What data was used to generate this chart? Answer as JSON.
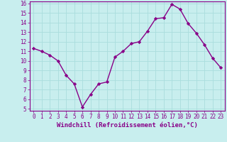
{
  "x": [
    0,
    1,
    2,
    3,
    4,
    5,
    6,
    7,
    8,
    9,
    10,
    11,
    12,
    13,
    14,
    15,
    16,
    17,
    18,
    19,
    20,
    21,
    22,
    23
  ],
  "y": [
    11.3,
    11.0,
    10.6,
    10.0,
    8.5,
    7.6,
    5.2,
    6.5,
    7.6,
    7.8,
    10.4,
    11.0,
    11.8,
    12.0,
    13.1,
    14.4,
    14.5,
    15.9,
    15.4,
    13.9,
    12.9,
    11.7,
    10.3,
    9.3
  ],
  "line_color": "#880088",
  "marker": "D",
  "marker_size": 2.2,
  "bg_color": "#c8eeee",
  "grid_color": "#aadddd",
  "xlabel": "Windchill (Refroidissement éolien,°C)",
  "xlabel_color": "#880088",
  "tick_color": "#880088",
  "ylim": [
    5,
    16
  ],
  "xlim": [
    -0.5,
    23.5
  ],
  "yticks": [
    5,
    6,
    7,
    8,
    9,
    10,
    11,
    12,
    13,
    14,
    15,
    16
  ],
  "xticks": [
    0,
    1,
    2,
    3,
    4,
    5,
    6,
    7,
    8,
    9,
    10,
    11,
    12,
    13,
    14,
    15,
    16,
    17,
    18,
    19,
    20,
    21,
    22,
    23
  ],
  "font_size": 5.5,
  "xlabel_font_size": 6.5,
  "line_width": 1.0
}
